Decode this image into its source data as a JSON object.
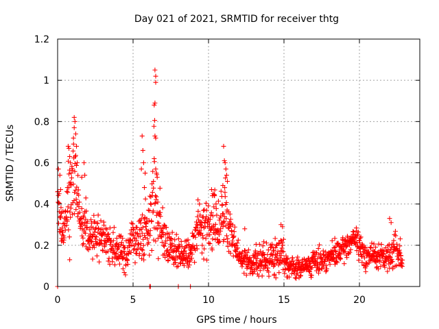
{
  "chart_data": {
    "type": "scatter",
    "title": "Day 021 of 2021, SRMTID for receiver thtg",
    "xlabel": "GPS time / hours",
    "ylabel": "SRMTID / TECUs",
    "xlim": [
      0,
      24
    ],
    "ylim": [
      0,
      1.2
    ],
    "xticks": [
      0,
      5,
      10,
      15,
      20
    ],
    "xtick_labels": [
      "0",
      "5",
      "10",
      "15",
      "20"
    ],
    "yticks": [
      0,
      0.2,
      0.4,
      0.6,
      0.8,
      1.0,
      1.2
    ],
    "ytick_labels": [
      "0",
      "0.2",
      "0.4",
      "0.6",
      "0.8",
      "1",
      "1.2"
    ],
    "grid": true,
    "marker": "plus",
    "color": "#ff0000",
    "series": [
      {
        "name": "SRMTID",
        "profile_hours": [
          0.0,
          0.1,
          0.3,
          0.6,
          0.8,
          1.0,
          1.15,
          1.3,
          1.6,
          2.0,
          2.5,
          3.0,
          3.5,
          4.0,
          4.5,
          5.0,
          5.3,
          5.6,
          5.8,
          6.1,
          6.4,
          6.6,
          6.9,
          7.2,
          7.6,
          8.0,
          8.5,
          9.0,
          9.2,
          9.6,
          10.0,
          10.4,
          10.8,
          11.0,
          11.3,
          11.7,
          12.0,
          12.5,
          13.0,
          13.5,
          14.0,
          14.5,
          14.8,
          15.2,
          15.6,
          16.0,
          16.5,
          17.0,
          17.5,
          18.0,
          18.5,
          19.0,
          19.4,
          19.8,
          20.2,
          20.6,
          21.0,
          21.5,
          22.0,
          22.4,
          22.8
        ],
        "profile_center": [
          0.4,
          0.35,
          0.28,
          0.34,
          0.45,
          0.52,
          0.58,
          0.42,
          0.34,
          0.26,
          0.24,
          0.24,
          0.18,
          0.17,
          0.17,
          0.23,
          0.2,
          0.26,
          0.3,
          0.27,
          0.45,
          0.36,
          0.28,
          0.22,
          0.18,
          0.16,
          0.15,
          0.17,
          0.27,
          0.28,
          0.3,
          0.32,
          0.27,
          0.4,
          0.28,
          0.2,
          0.15,
          0.12,
          0.12,
          0.12,
          0.14,
          0.14,
          0.18,
          0.11,
          0.09,
          0.09,
          0.1,
          0.12,
          0.13,
          0.14,
          0.16,
          0.18,
          0.22,
          0.23,
          0.16,
          0.15,
          0.15,
          0.14,
          0.14,
          0.2,
          0.14
        ],
        "profile_spread": [
          0.16,
          0.14,
          0.1,
          0.14,
          0.18,
          0.24,
          0.24,
          0.14,
          0.12,
          0.1,
          0.1,
          0.1,
          0.09,
          0.09,
          0.09,
          0.1,
          0.09,
          0.18,
          0.18,
          0.14,
          0.4,
          0.2,
          0.12,
          0.1,
          0.09,
          0.08,
          0.08,
          0.08,
          0.12,
          0.14,
          0.16,
          0.14,
          0.12,
          0.24,
          0.12,
          0.09,
          0.07,
          0.07,
          0.07,
          0.07,
          0.07,
          0.09,
          0.1,
          0.06,
          0.05,
          0.05,
          0.05,
          0.06,
          0.06,
          0.06,
          0.06,
          0.06,
          0.06,
          0.06,
          0.07,
          0.07,
          0.06,
          0.06,
          0.07,
          0.1,
          0.07
        ],
        "points": [
          [
            0.05,
            0.57
          ],
          [
            0.15,
            0.54
          ],
          [
            0.1,
            0.45
          ],
          [
            0.2,
            0.47
          ],
          [
            0.3,
            0.25
          ],
          [
            0.25,
            0.22
          ],
          [
            0.7,
            0.68
          ],
          [
            0.75,
            0.67
          ],
          [
            0.8,
            0.63
          ],
          [
            0.85,
            0.6
          ],
          [
            0.9,
            0.55
          ],
          [
            0.65,
            0.48
          ],
          [
            1.1,
            0.82
          ],
          [
            1.15,
            0.8
          ],
          [
            1.1,
            0.77
          ],
          [
            1.2,
            0.74
          ],
          [
            1.05,
            0.72
          ],
          [
            1.25,
            0.68
          ],
          [
            1.3,
            0.6
          ],
          [
            1.6,
            0.53
          ],
          [
            1.75,
            0.6
          ],
          [
            1.8,
            0.54
          ],
          [
            0.8,
            0.13
          ],
          [
            5.6,
            0.73
          ],
          [
            5.65,
            0.66
          ],
          [
            5.7,
            0.6
          ],
          [
            5.55,
            0.57
          ],
          [
            5.8,
            0.55
          ],
          [
            5.75,
            0.48
          ],
          [
            6.45,
            1.05
          ],
          [
            6.5,
            1.02
          ],
          [
            6.5,
            0.99
          ],
          [
            6.45,
            0.89
          ],
          [
            6.4,
            0.88
          ],
          [
            6.45,
            0.73
          ],
          [
            6.5,
            0.72
          ],
          [
            6.4,
            0.62
          ],
          [
            6.5,
            0.57
          ],
          [
            6.55,
            0.55
          ],
          [
            6.6,
            0.53
          ],
          [
            6.35,
            0.51
          ],
          [
            11.0,
            0.68
          ],
          [
            11.05,
            0.61
          ],
          [
            11.1,
            0.6
          ],
          [
            11.15,
            0.57
          ],
          [
            11.2,
            0.54
          ],
          [
            11.25,
            0.51
          ],
          [
            10.95,
            0.49
          ],
          [
            9.3,
            0.42
          ],
          [
            9.4,
            0.4
          ],
          [
            10.2,
            0.47
          ],
          [
            10.3,
            0.45
          ],
          [
            10.4,
            0.44
          ],
          [
            14.8,
            0.3
          ],
          [
            14.9,
            0.29
          ],
          [
            12.4,
            0.28
          ],
          [
            22.0,
            0.33
          ],
          [
            22.1,
            0.31
          ],
          [
            0.0,
            0.0
          ],
          [
            6.1,
            0.0
          ],
          [
            6.15,
            0.0
          ],
          [
            8.0,
            0.0
          ],
          [
            8.8,
            0.0
          ]
        ]
      }
    ]
  }
}
